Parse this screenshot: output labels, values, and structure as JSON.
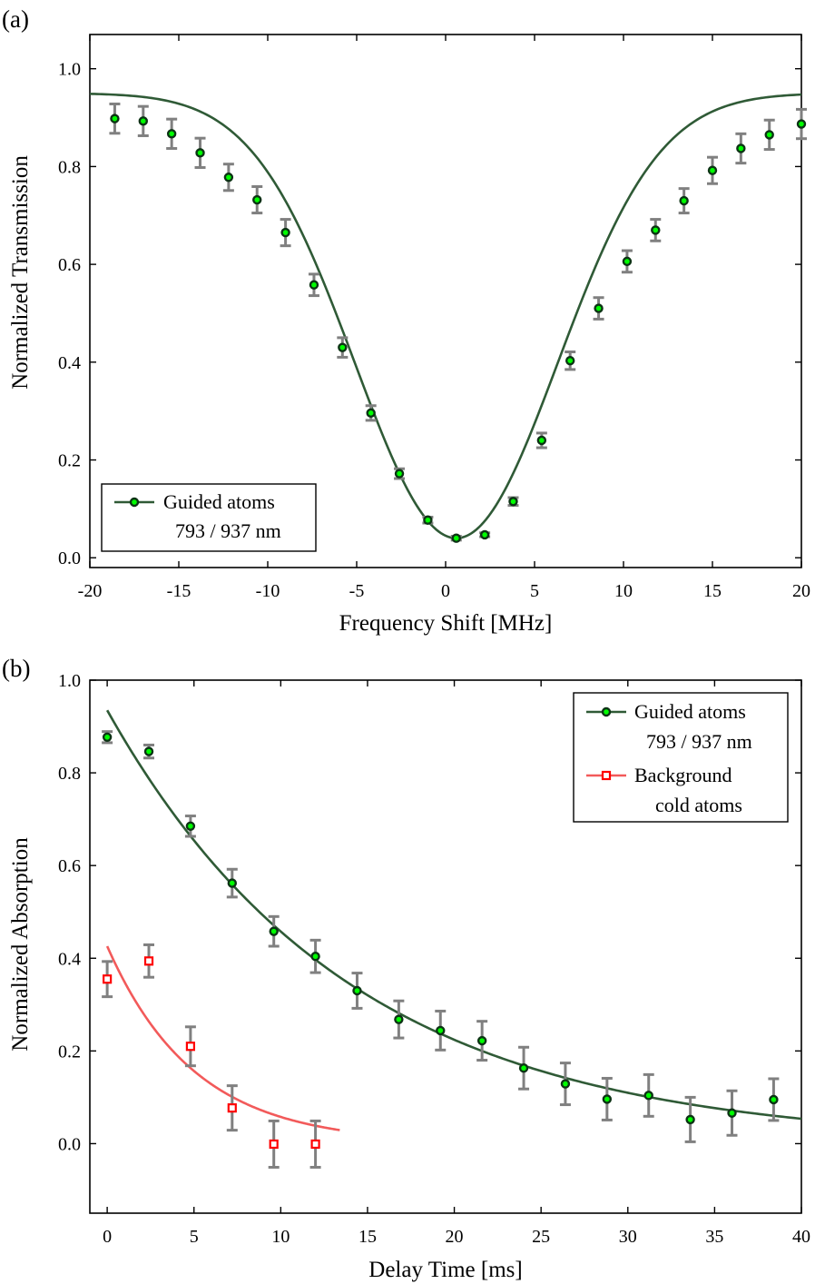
{
  "colors": {
    "guided": "#2f5a36",
    "guided_marker_fill": "#00ff00",
    "background": "#f25a5a",
    "background_marker": "#ff0000",
    "errorbar": "#808080"
  },
  "chart_data": [
    {
      "panel": "(a)",
      "type": "scatter",
      "xlabel": "Frequency Shift [MHz]",
      "ylabel": "Normalized Transmission",
      "xlim": [
        -20,
        20
      ],
      "ylim": [
        -0.02,
        1.07
      ],
      "xticks": [
        -20,
        -15,
        -10,
        -5,
        0,
        5,
        10,
        15,
        20
      ],
      "yticks": [
        0.0,
        0.2,
        0.4,
        0.6,
        0.8,
        1.0
      ],
      "legend_position": "bottom-left",
      "series": [
        {
          "name": "Guided atoms",
          "name_line2": "793 / 937 nm",
          "marker": "circle",
          "x": [
            -18.6,
            -17.0,
            -15.4,
            -13.8,
            -12.2,
            -10.6,
            -9.0,
            -7.4,
            -5.8,
            -4.2,
            -2.6,
            -1.0,
            0.6,
            2.2,
            3.8,
            5.4,
            7.0,
            8.6,
            10.2,
            11.8,
            13.4,
            15.0,
            16.6,
            18.2,
            20.0
          ],
          "y": [
            0.898,
            0.893,
            0.867,
            0.828,
            0.778,
            0.732,
            0.665,
            0.558,
            0.43,
            0.296,
            0.172,
            0.077,
            0.04,
            0.047,
            0.115,
            0.24,
            0.403,
            0.51,
            0.606,
            0.67,
            0.73,
            0.792,
            0.837,
            0.865,
            0.887
          ],
          "yerr": [
            0.03,
            0.03,
            0.03,
            0.03,
            0.027,
            0.027,
            0.027,
            0.022,
            0.02,
            0.015,
            0.01,
            0.006,
            0.004,
            0.004,
            0.008,
            0.015,
            0.018,
            0.022,
            0.022,
            0.022,
            0.025,
            0.027,
            0.03,
            0.03,
            0.03
          ],
          "fit": {
            "model": "gaussian_dip",
            "baseline": 0.95,
            "depth": 0.91,
            "center": 0.6,
            "sigma": 5.7
          }
        }
      ]
    },
    {
      "panel": "(b)",
      "type": "scatter",
      "xlabel": "Delay Time [ms]",
      "ylabel": "Normalized Absorption",
      "xlim": [
        -1,
        40
      ],
      "ylim": [
        -0.15,
        1.0
      ],
      "xticks": [
        0,
        5,
        10,
        15,
        20,
        25,
        30,
        35,
        40
      ],
      "yticks": [
        0.0,
        0.2,
        0.4,
        0.6,
        0.8,
        1.0
      ],
      "legend_position": "top-right",
      "series": [
        {
          "name": "Guided atoms",
          "name_line2": "793 / 937 nm",
          "marker": "circle",
          "x": [
            0.0,
            2.4,
            4.8,
            7.2,
            9.6,
            12.0,
            14.4,
            16.8,
            19.2,
            21.6,
            24.0,
            26.4,
            28.8,
            31.2,
            33.6,
            36.0,
            38.4
          ],
          "y": [
            0.877,
            0.846,
            0.685,
            0.562,
            0.458,
            0.404,
            0.33,
            0.268,
            0.244,
            0.222,
            0.163,
            0.129,
            0.096,
            0.104,
            0.052,
            0.066,
            0.095
          ],
          "yerr": [
            0.012,
            0.014,
            0.022,
            0.03,
            0.032,
            0.035,
            0.038,
            0.04,
            0.042,
            0.042,
            0.045,
            0.045,
            0.045,
            0.045,
            0.048,
            0.048,
            0.045
          ],
          "fit": {
            "model": "exp_decay",
            "amplitude": 0.935,
            "tau": 14.0,
            "x_range": [
              0,
              40
            ]
          }
        },
        {
          "name": "Background",
          "name_line2": "cold atoms",
          "marker": "square",
          "x": [
            0.0,
            2.4,
            4.8,
            7.2,
            9.6,
            12.0
          ],
          "y": [
            0.355,
            0.394,
            0.21,
            0.077,
            -0.001,
            -0.001
          ],
          "yerr": [
            0.038,
            0.035,
            0.042,
            0.048,
            0.05,
            0.05
          ],
          "fit": {
            "model": "exp_decay",
            "amplitude": 0.426,
            "tau": 5.0,
            "x_range": [
              0,
              13.4
            ]
          }
        }
      ]
    }
  ]
}
